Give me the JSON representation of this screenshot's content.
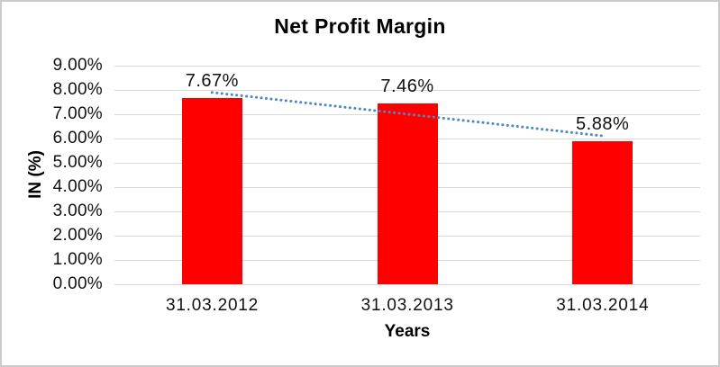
{
  "chart_data": {
    "type": "bar",
    "title": "Net Profit Margin",
    "xlabel": "Years",
    "ylabel": "IN (%)",
    "categories": [
      "31.03.2012",
      "31.03.2013",
      "31.03.2014"
    ],
    "values": [
      7.67,
      7.46,
      5.88
    ],
    "data_labels": [
      "7.67%",
      "7.46%",
      "5.88%"
    ],
    "ylim": [
      0,
      9
    ],
    "ytick_step": 1,
    "ytick_labels": [
      "0.00%",
      "1.00%",
      "2.00%",
      "3.00%",
      "4.00%",
      "5.00%",
      "6.00%",
      "7.00%",
      "8.00%",
      "9.00%"
    ],
    "grid": true,
    "legend": "none",
    "bar_color": "#ff0000",
    "gridline_color": "#d9d9d9",
    "text_color": "#111111",
    "trendline": {
      "type": "linear",
      "style": "dotted",
      "color": "#4e87c6"
    }
  }
}
